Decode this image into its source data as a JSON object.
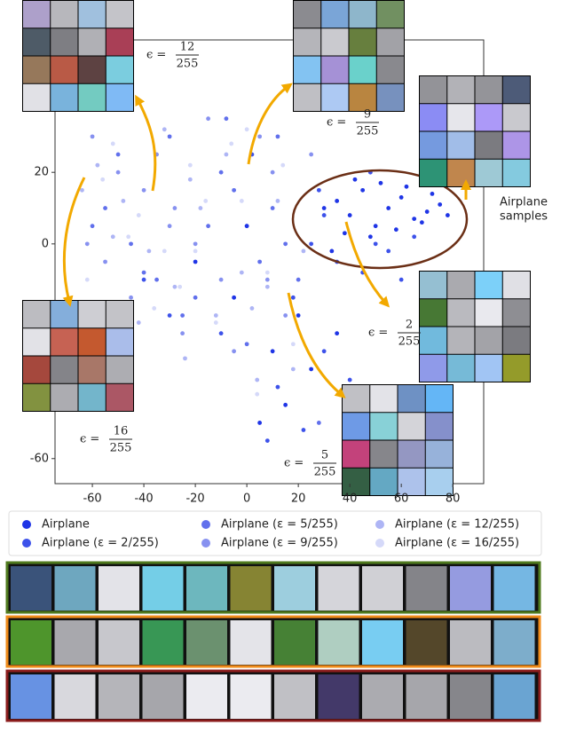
{
  "chart_data": {
    "type": "scatter",
    "xlim": [
      -74.5,
      92
    ],
    "ylim": [
      -67,
      57
    ],
    "xticks": [
      -60,
      -40,
      -20,
      0,
      20,
      40,
      60,
      80
    ],
    "yticks": [
      -60,
      0,
      20
    ],
    "annotations": [
      {
        "label": "ϵ =",
        "numerator": "12",
        "denominator": "255"
      },
      {
        "label": "ϵ =",
        "numerator": "9",
        "denominator": "255"
      },
      {
        "label": "ϵ =",
        "numerator": "2",
        "denominator": "255"
      },
      {
        "label": "ϵ =",
        "numerator": "5",
        "denominator": "255"
      },
      {
        "label": "ϵ =",
        "numerator": "16",
        "denominator": "255"
      }
    ],
    "samples_label": [
      "Airplane",
      "samples"
    ],
    "series": [
      {
        "name": "Airplane",
        "color": "#1f35e6",
        "x": [
          30,
          35,
          40,
          45,
          50,
          55,
          60,
          65,
          70,
          75,
          38,
          48,
          58,
          68,
          42,
          52,
          62,
          72,
          33,
          78,
          20,
          10,
          -5,
          15,
          25,
          5,
          -20,
          0,
          35,
          45
        ],
        "y": [
          10,
          12,
          8,
          15,
          5,
          10,
          13,
          7,
          9,
          11,
          3,
          2,
          4,
          6,
          18,
          17,
          16,
          14,
          -2,
          8,
          -20,
          -30,
          -15,
          -45,
          -35,
          -50,
          -5,
          5,
          -25,
          -40
        ]
      },
      {
        "name": "Airplane (ε = 2/255)",
        "color": "#3d52ea",
        "x": [
          25,
          35,
          45,
          55,
          65,
          28,
          48,
          60,
          30,
          40,
          18,
          8,
          -10,
          22,
          12,
          -30,
          -40,
          2,
          30,
          50
        ],
        "y": [
          0,
          -5,
          -8,
          -2,
          2,
          15,
          20,
          -10,
          -30,
          -38,
          -15,
          -55,
          -25,
          -52,
          -40,
          -20,
          -10,
          25,
          8,
          0
        ]
      },
      {
        "name": "Airplane (ε = 5/255)",
        "color": "#6170ec",
        "x": [
          -55,
          -45,
          -35,
          -25,
          -15,
          -5,
          5,
          15,
          -50,
          -30,
          -10,
          10,
          20,
          -20,
          0,
          -40,
          28,
          -60,
          -8,
          12
        ],
        "y": [
          10,
          0,
          -10,
          -20,
          5,
          15,
          -5,
          0,
          25,
          30,
          20,
          10,
          -10,
          -15,
          -28,
          -8,
          -50,
          5,
          35,
          30
        ]
      },
      {
        "name": "Airplane (ε = 9/255)",
        "color": "#8791f0",
        "x": [
          -60,
          -50,
          -40,
          -30,
          -20,
          -10,
          0,
          10,
          -45,
          -25,
          -5,
          15,
          -35,
          -15,
          5,
          -55,
          25,
          -62,
          -28,
          8
        ],
        "y": [
          30,
          20,
          15,
          5,
          0,
          -10,
          5,
          20,
          -15,
          -25,
          -30,
          -20,
          25,
          35,
          30,
          -5,
          25,
          0,
          10,
          -10
        ]
      },
      {
        "name": "Airplane (ε = 12/255)",
        "color": "#aeb5f5",
        "x": [
          -58,
          -48,
          -38,
          -28,
          -18,
          -8,
          2,
          12,
          -42,
          -22,
          -2,
          18,
          -32,
          -12,
          8,
          -52,
          22,
          -64,
          -24,
          4
        ],
        "y": [
          22,
          12,
          -2,
          -12,
          10,
          25,
          -18,
          12,
          -22,
          18,
          -8,
          -35,
          32,
          -20,
          -12,
          2,
          -2,
          15,
          -32,
          -38
        ]
      },
      {
        "name": "Airplane (ε = 16/255)",
        "color": "#d5d9f9",
        "x": [
          -62,
          -52,
          -42,
          -32,
          -22,
          -12,
          -2,
          8,
          -46,
          -26,
          -6,
          14,
          -36,
          -16,
          4,
          -56,
          18,
          -60,
          -20,
          0
        ],
        "y": [
          -10,
          28,
          8,
          -2,
          22,
          -22,
          12,
          -8,
          2,
          -12,
          28,
          22,
          -18,
          12,
          -42,
          18,
          -28,
          -18,
          -2,
          32
        ]
      }
    ]
  }
}
